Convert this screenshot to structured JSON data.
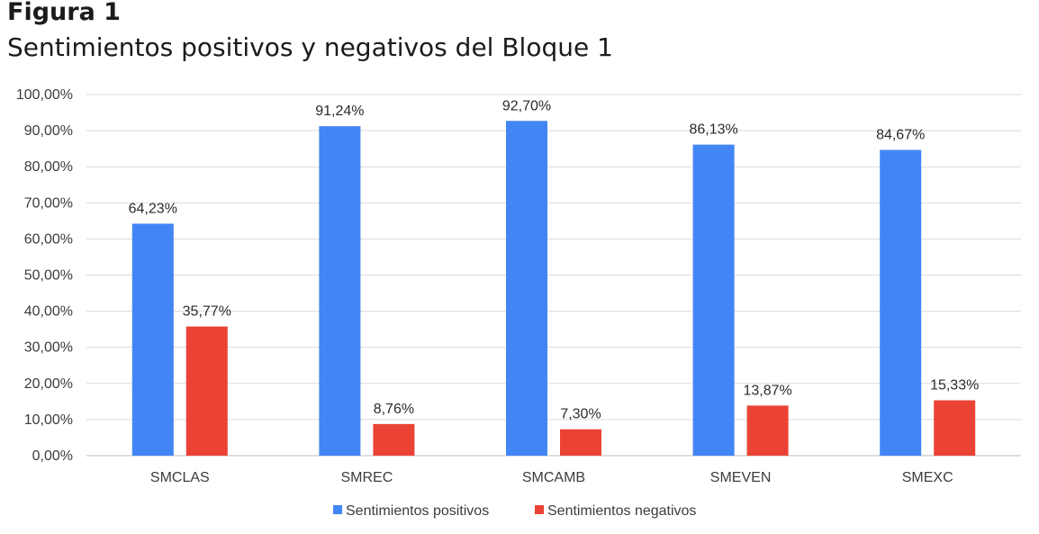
{
  "figure": {
    "label": "Figura 1",
    "title": "Sentimientos positivos y negativos del Bloque 1"
  },
  "chart_data": {
    "type": "bar",
    "categories": [
      "SMCLAS",
      "SMREC",
      "SMCAMB",
      "SMEVEN",
      "SMEXC"
    ],
    "series": [
      {
        "name": "Sentimientos positivos",
        "color": "#4285f4",
        "values": [
          64.23,
          91.24,
          92.7,
          86.13,
          84.67
        ],
        "labels": [
          "64,23%",
          "91,24%",
          "92,70%",
          "86,13%",
          "84,67%"
        ]
      },
      {
        "name": "Sentimientos negativos",
        "color": "#ea4335",
        "values": [
          35.77,
          8.76,
          7.3,
          13.87,
          15.33
        ],
        "labels": [
          "35,77%",
          "8,76%",
          "7,30%",
          "13,87%",
          "15,33%"
        ]
      }
    ],
    "ylim": [
      0,
      100
    ],
    "yticks": [
      "0,00%",
      "10,00%",
      "20,00%",
      "30,00%",
      "40,00%",
      "50,00%",
      "60,00%",
      "70,00%",
      "80,00%",
      "90,00%",
      "100,00%"
    ],
    "grid": true,
    "legend": "bottom"
  }
}
